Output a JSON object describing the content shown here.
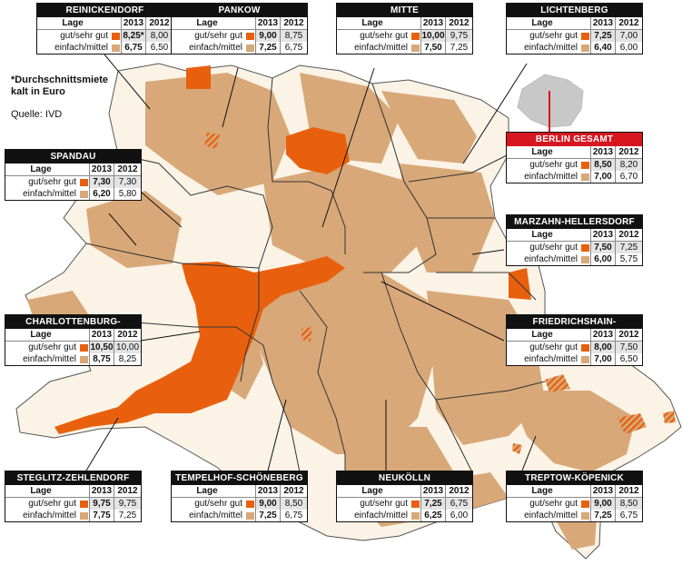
{
  "note": "*Durchschnittsmiete kalt in Euro",
  "source": "Quelle: IVD",
  "colors": {
    "gut": "#e8600e",
    "einfach": "#d8a878",
    "base": "#fbf3e6",
    "overview": "#c8c8c8"
  },
  "header": {
    "lage": "Lage",
    "y2013": "2013",
    "y2012": "2012"
  },
  "districts": [
    {
      "id": "reinickendorf",
      "name": "REINICKENDORF",
      "gut_2013": "8,25*",
      "gut_2012": "8,00",
      "einfach_2013": "6,75",
      "einfach_2012": "6,50",
      "gut_label": "gut/sehr gut",
      "einfach_label": "einfach/mittel"
    },
    {
      "id": "pankow",
      "name": "PANKOW",
      "gut_2013": "9,00",
      "gut_2012": "8,75",
      "einfach_2013": "7,25",
      "einfach_2012": "6,75",
      "gut_label": "gut/sehr gut",
      "einfach_label": "einfach/mittel"
    },
    {
      "id": "mitte",
      "name": "MITTE",
      "gut_2013": "10,00",
      "gut_2012": "9,75",
      "einfach_2013": "7,50",
      "einfach_2012": "7,25",
      "gut_label": "gut/sehr gut",
      "einfach_label": "einfach/mittel"
    },
    {
      "id": "lichtenberg",
      "name": "LICHTENBERG",
      "gut_2013": "7,25",
      "gut_2012": "7,00",
      "einfach_2013": "6,40",
      "einfach_2012": "6,00",
      "gut_label": "gut/sehr gut",
      "einfach_label": "einfach/mittel"
    },
    {
      "id": "spandau",
      "name": "SPANDAU",
      "gut_2013": "7,30",
      "gut_2012": "7,30",
      "einfach_2013": "6,20",
      "einfach_2012": "5,80",
      "gut_label": "gut/sehr gut",
      "einfach_label": "einfach/mittel"
    },
    {
      "id": "berlin",
      "name": "BERLIN GESAMT",
      "gut_2013": "8,50",
      "gut_2012": "8,20",
      "einfach_2013": "7,00",
      "einfach_2012": "6,70",
      "gut_label": "gut/sehr gut",
      "einfach_label": "einfach/mittel"
    },
    {
      "id": "marzahn",
      "name": "MARZAHN-HELLERSDORF",
      "gut_2013": "7,50",
      "gut_2012": "7,25",
      "einfach_2013": "6,00",
      "einfach_2012": "5,75",
      "gut_label": "gut/sehr gut",
      "einfach_label": "einfach/mittel"
    },
    {
      "id": "charlottenburg",
      "name": "CHARLOTTENBURG-WILMERSDORF",
      "gut_2013": "10,50",
      "gut_2012": "10,00",
      "einfach_2013": "8,75",
      "einfach_2012": "8,25",
      "gut_label": "gut/sehr gut",
      "einfach_label": "einfach/mittel"
    },
    {
      "id": "friedrichshain",
      "name": "FRIEDRICHSHAIN-KREUZBERG",
      "gut_2013": "8,00",
      "gut_2012": "7,50",
      "einfach_2013": "7,00",
      "einfach_2012": "6,50",
      "gut_label": "gut/sehr gut",
      "einfach_label": "einfach/mittel"
    },
    {
      "id": "steglitz",
      "name": "STEGLITZ-ZEHLENDORF",
      "gut_2013": "9,75",
      "gut_2012": "9,75",
      "einfach_2013": "7,75",
      "einfach_2012": "7,25",
      "gut_label": "gut/sehr gut",
      "einfach_label": "einfach/mittel"
    },
    {
      "id": "tempelhof",
      "name": "TEMPELHOF-SCHÖNEBERG",
      "gut_2013": "9,00",
      "gut_2012": "8,50",
      "einfach_2013": "7,25",
      "einfach_2012": "6,75",
      "gut_label": "gut/sehr gut",
      "einfach_label": "einfach/mittel"
    },
    {
      "id": "neukoelln",
      "name": "NEUKÖLLN",
      "gut_2013": "7,25",
      "gut_2012": "6,75",
      "einfach_2013": "6,25",
      "einfach_2012": "6,00",
      "gut_label": "gut/sehr gut",
      "einfach_label": "einfach/mittel"
    },
    {
      "id": "treptow",
      "name": "TREPTOW-KÖPENICK",
      "gut_2013": "9,00",
      "gut_2012": "8,50",
      "einfach_2013": "7,25",
      "einfach_2012": "6,75",
      "gut_label": "gut/sehr gut",
      "einfach_label": "einfach/mittel"
    }
  ]
}
